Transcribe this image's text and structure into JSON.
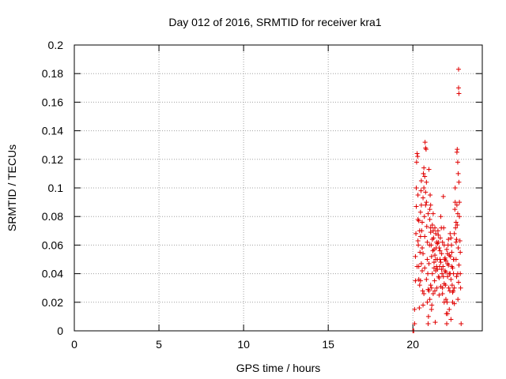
{
  "chart_data": {
    "type": "scatter",
    "title": "Day 012 of 2016, SRMTID for receiver kra1",
    "xlabel": "GPS time / hours",
    "ylabel": "SRMTID / TECUs",
    "xlim": [
      0,
      24.1
    ],
    "ylim": [
      0,
      0.2
    ],
    "xticks": [
      0,
      5,
      10,
      15,
      20
    ],
    "yticks": [
      0,
      0.02,
      0.04,
      0.06,
      0.08,
      0.1,
      0.12,
      0.14,
      0.16,
      0.18,
      0.2
    ],
    "xtick_labels": [
      "0",
      "5",
      "10",
      "15",
      "20"
    ],
    "ytick_labels": [
      "0",
      "0.02",
      "0.04",
      "0.06",
      "0.08",
      "0.1",
      "0.12",
      "0.14",
      "0.16",
      "0.18",
      "0.2"
    ],
    "grid": true,
    "marker": "+",
    "color": "#e00000",
    "series": [
      {
        "name": "SRMTID",
        "points": [
          [
            20.0,
            0.0
          ],
          [
            20.05,
            0.0
          ],
          [
            20.1,
            0.005
          ],
          [
            20.1,
            0.015
          ],
          [
            20.15,
            0.035
          ],
          [
            20.15,
            0.052
          ],
          [
            20.18,
            0.068
          ],
          [
            20.2,
            0.087
          ],
          [
            20.2,
            0.1
          ],
          [
            20.22,
            0.118
          ],
          [
            20.25,
            0.124
          ],
          [
            20.28,
            0.122
          ],
          [
            20.3,
            0.095
          ],
          [
            20.3,
            0.078
          ],
          [
            20.32,
            0.06
          ],
          [
            20.35,
            0.045
          ],
          [
            20.35,
            0.036
          ],
          [
            20.38,
            0.016
          ],
          [
            20.4,
            0.032
          ],
          [
            20.42,
            0.055
          ],
          [
            20.45,
            0.066
          ],
          [
            20.45,
            0.083
          ],
          [
            20.48,
            0.098
          ],
          [
            20.5,
            0.105
          ],
          [
            20.5,
            0.088
          ],
          [
            20.52,
            0.07
          ],
          [
            20.55,
            0.058
          ],
          [
            20.55,
            0.042
          ],
          [
            20.58,
            0.028
          ],
          [
            20.6,
            0.018
          ],
          [
            20.62,
            0.11
          ],
          [
            20.65,
            0.114
          ],
          [
            20.65,
            0.1
          ],
          [
            20.68,
            0.08
          ],
          [
            20.7,
            0.066
          ],
          [
            20.72,
            0.132
          ],
          [
            20.75,
            0.128
          ],
          [
            20.78,
            0.127
          ],
          [
            20.8,
            0.104
          ],
          [
            20.8,
            0.09
          ],
          [
            20.82,
            0.073
          ],
          [
            20.85,
            0.062
          ],
          [
            20.85,
            0.05
          ],
          [
            20.88,
            0.04
          ],
          [
            20.9,
            0.005
          ],
          [
            20.92,
            0.01
          ],
          [
            20.95,
            0.028
          ],
          [
            20.95,
            0.047
          ],
          [
            20.98,
            0.06
          ],
          [
            21.0,
            0.078
          ],
          [
            21.0,
            0.085
          ],
          [
            21.02,
            0.095
          ],
          [
            21.05,
            0.072
          ],
          [
            21.08,
            0.06
          ],
          [
            21.1,
            0.052
          ],
          [
            21.1,
            0.03
          ],
          [
            21.12,
            0.018
          ],
          [
            21.15,
            0.04
          ],
          [
            21.18,
            0.056
          ],
          [
            21.2,
            0.07
          ],
          [
            21.2,
            0.082
          ],
          [
            21.22,
            0.065
          ],
          [
            21.25,
            0.048
          ],
          [
            21.28,
            0.035
          ],
          [
            21.3,
            0.028
          ],
          [
            21.32,
            0.006
          ],
          [
            21.35,
            0.042
          ],
          [
            21.38,
            0.058
          ],
          [
            21.4,
            0.045
          ],
          [
            21.42,
            0.03
          ],
          [
            21.45,
            0.05
          ],
          [
            21.48,
            0.07
          ],
          [
            21.5,
            0.062
          ],
          [
            21.52,
            0.038
          ],
          [
            21.55,
            0.025
          ],
          [
            21.58,
            0.045
          ],
          [
            21.6,
            0.056
          ],
          [
            21.62,
            0.065
          ],
          [
            21.65,
            0.08
          ],
          [
            21.68,
            0.072
          ],
          [
            21.7,
            0.054
          ],
          [
            21.72,
            0.04
          ],
          [
            21.75,
            0.03
          ],
          [
            21.78,
            0.045
          ],
          [
            21.8,
            0.094
          ],
          [
            21.82,
            0.072
          ],
          [
            21.85,
            0.06
          ],
          [
            21.88,
            0.05
          ],
          [
            21.9,
            0.042
          ],
          [
            21.92,
            0.032
          ],
          [
            21.95,
            0.022
          ],
          [
            21.98,
            0.012
          ],
          [
            22.0,
            0.005
          ],
          [
            22.02,
            0.02
          ],
          [
            22.05,
            0.038
          ],
          [
            22.05,
            0.054
          ],
          [
            22.08,
            0.06
          ],
          [
            22.1,
            0.046
          ],
          [
            22.12,
            0.03
          ],
          [
            22.15,
            0.015
          ],
          [
            22.18,
            0.028
          ],
          [
            22.2,
            0.04
          ],
          [
            22.22,
            0.052
          ],
          [
            22.25,
            0.065
          ],
          [
            22.28,
            0.06
          ],
          [
            22.3,
            0.045
          ],
          [
            22.32,
            0.032
          ],
          [
            22.35,
            0.02
          ],
          [
            22.38,
            0.028
          ],
          [
            22.4,
            0.04
          ],
          [
            22.42,
            0.05
          ],
          [
            22.45,
            0.068
          ],
          [
            22.48,
            0.085
          ],
          [
            22.5,
            0.1
          ],
          [
            22.5,
            0.09
          ],
          [
            22.52,
            0.072
          ],
          [
            22.55,
            0.062
          ],
          [
            22.55,
            0.05
          ],
          [
            22.58,
            0.038
          ],
          [
            22.6,
            0.125
          ],
          [
            22.62,
            0.127
          ],
          [
            22.65,
            0.118
          ],
          [
            22.68,
            0.11
          ],
          [
            22.7,
            0.183
          ],
          [
            22.7,
            0.17
          ],
          [
            22.72,
            0.166
          ],
          [
            22.72,
            0.104
          ],
          [
            22.75,
            0.09
          ],
          [
            22.75,
            0.08
          ],
          [
            22.78,
            0.063
          ],
          [
            22.8,
            0.055
          ],
          [
            22.8,
            0.04
          ],
          [
            22.82,
            0.03
          ],
          [
            22.85,
            0.005
          ],
          [
            22.6,
            0.088
          ],
          [
            22.65,
            0.082
          ],
          [
            22.62,
            0.074
          ],
          [
            22.58,
            0.064
          ],
          [
            22.68,
            0.058
          ],
          [
            22.72,
            0.046
          ],
          [
            22.7,
            0.034
          ],
          [
            22.66,
            0.022
          ],
          [
            20.7,
            0.108
          ],
          [
            20.6,
            0.093
          ],
          [
            20.55,
            0.076
          ],
          [
            20.75,
            0.088
          ],
          [
            20.9,
            0.082
          ],
          [
            21.05,
            0.069
          ],
          [
            21.15,
            0.064
          ],
          [
            21.25,
            0.057
          ],
          [
            21.35,
            0.05
          ],
          [
            21.45,
            0.043
          ],
          [
            21.55,
            0.037
          ],
          [
            21.65,
            0.031
          ],
          [
            21.75,
            0.026
          ],
          [
            21.85,
            0.033
          ],
          [
            21.95,
            0.041
          ],
          [
            22.05,
            0.047
          ],
          [
            22.15,
            0.053
          ],
          [
            22.25,
            0.036
          ],
          [
            22.35,
            0.027
          ],
          [
            22.45,
            0.019
          ],
          [
            20.3,
            0.063
          ],
          [
            20.4,
            0.07
          ],
          [
            20.5,
            0.047
          ],
          [
            20.6,
            0.054
          ],
          [
            20.7,
            0.044
          ],
          [
            20.8,
            0.036
          ],
          [
            20.9,
            0.029
          ],
          [
            21.0,
            0.022
          ],
          [
            21.1,
            0.015
          ],
          [
            21.2,
            0.026
          ],
          [
            21.3,
            0.053
          ],
          [
            21.4,
            0.062
          ],
          [
            21.5,
            0.067
          ],
          [
            21.6,
            0.05
          ],
          [
            21.7,
            0.043
          ],
          [
            21.8,
            0.038
          ],
          [
            21.9,
            0.051
          ],
          [
            22.0,
            0.057
          ],
          [
            22.1,
            0.064
          ],
          [
            22.2,
            0.068
          ],
          [
            22.3,
            0.055
          ],
          [
            22.4,
            0.05
          ],
          [
            20.45,
            0.035
          ],
          [
            20.65,
            0.026
          ],
          [
            20.85,
            0.02
          ],
          [
            21.05,
            0.032
          ],
          [
            21.25,
            0.044
          ],
          [
            21.45,
            0.061
          ],
          [
            21.65,
            0.048
          ],
          [
            21.85,
            0.02
          ],
          [
            22.05,
            0.012
          ],
          [
            22.25,
            0.008
          ],
          [
            22.45,
            0.03
          ],
          [
            22.65,
            0.04
          ],
          [
            20.25,
            0.045
          ],
          [
            20.95,
            0.113
          ],
          [
            21.15,
            0.074
          ],
          [
            21.35,
            0.068
          ],
          [
            21.55,
            0.058
          ],
          [
            21.75,
            0.062
          ],
          [
            21.95,
            0.049
          ],
          [
            22.15,
            0.04
          ],
          [
            22.35,
            0.044
          ],
          [
            22.55,
            0.076
          ],
          [
            20.35,
            0.077
          ],
          [
            20.75,
            0.097
          ],
          [
            21.05,
            0.088
          ],
          [
            21.3,
            0.072
          ]
        ]
      }
    ]
  }
}
